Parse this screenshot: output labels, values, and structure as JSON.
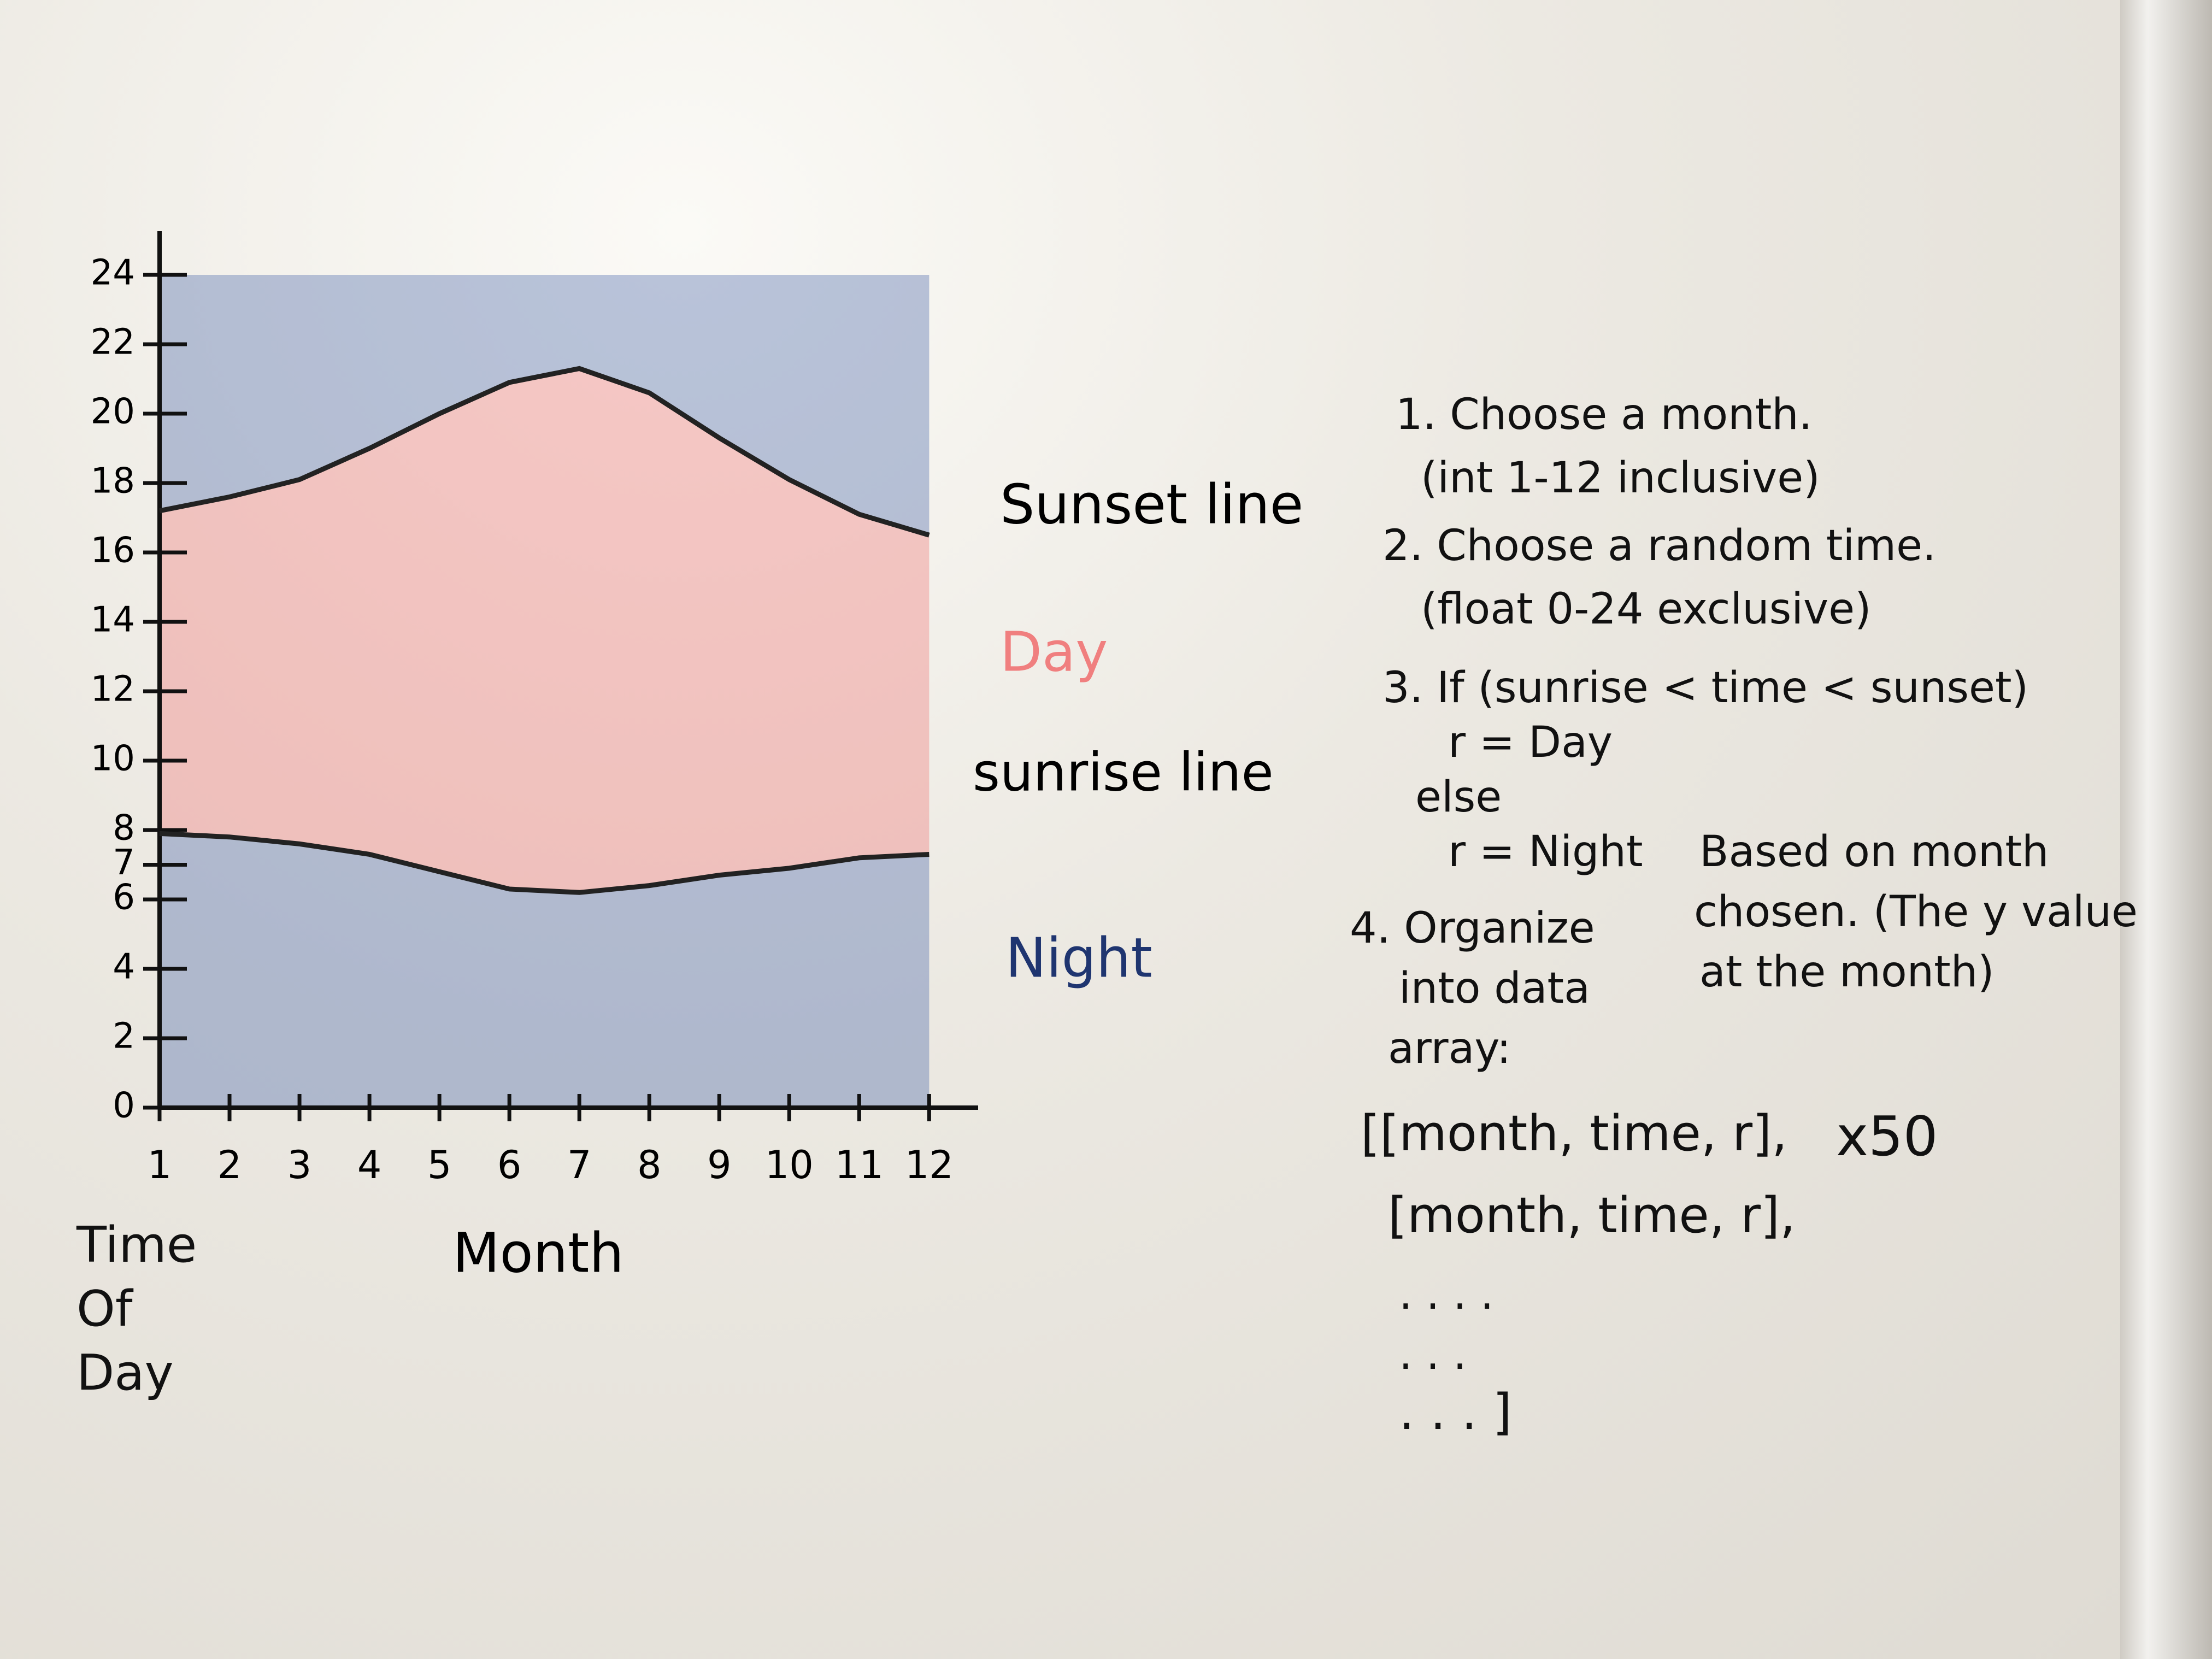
{
  "chart_data": {
    "type": "line",
    "x_label": "Month",
    "y_label": "Time Of Day",
    "x": [
      1,
      2,
      3,
      4,
      5,
      6,
      7,
      8,
      9,
      10,
      11,
      12
    ],
    "xlim": [
      1,
      12.7
    ],
    "xticks": [
      1,
      2,
      3,
      4,
      5,
      6,
      7,
      8,
      9,
      10,
      11,
      12
    ],
    "ylim": [
      0,
      24
    ],
    "yticks": [
      0,
      2,
      4,
      6,
      7,
      8,
      10,
      12,
      14,
      16,
      18,
      20,
      22,
      24
    ],
    "series": [
      {
        "name": "Sunset line",
        "color": "#222222",
        "values": [
          17.2,
          17.6,
          18.1,
          19.0,
          20.0,
          20.9,
          21.3,
          20.6,
          19.3,
          18.1,
          17.1,
          16.5
        ]
      },
      {
        "name": "sunrise line",
        "color": "#222222",
        "values": [
          7.9,
          7.8,
          7.6,
          7.3,
          6.8,
          6.3,
          6.2,
          6.4,
          6.7,
          6.9,
          7.2,
          7.3
        ]
      }
    ],
    "regions": [
      {
        "label": "Day",
        "color": "#f07f7f"
      },
      {
        "label": "Night",
        "color": "#3e5ea6"
      }
    ]
  },
  "notes": {
    "steps": [
      "1. Choose a month.",
      "(int 1-12 inclusive)",
      "2. Choose a random time.",
      "(float 0-24 exclusive)",
      "3. If (sunrise < time < sunset)",
      "r = Day",
      "else",
      "r = Night",
      "4. Organize",
      "into data",
      "array:"
    ],
    "annotation": [
      "Based on month",
      "chosen. (The y value",
      "at the month)"
    ],
    "array": [
      "[[month, time, r],",
      "[month, time, r],",
      ". . . .",
      ". . .",
      ". . . ]"
    ],
    "multiplier": "x50"
  }
}
